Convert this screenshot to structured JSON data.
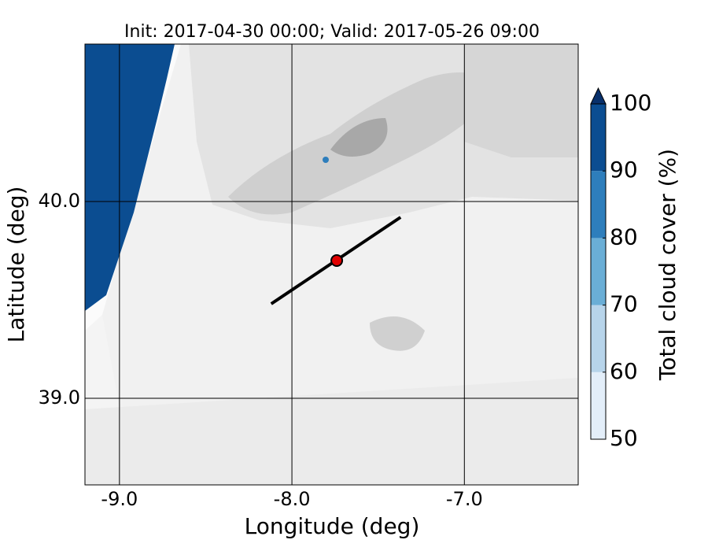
{
  "chart_data": {
    "type": "map",
    "title": "Init: 2017-04-30 00:00; Valid: 2017-05-26 09:00",
    "x_label": "Longitude (deg)",
    "y_label": "Latitude (deg)",
    "xlim": [
      -9.2,
      -6.34
    ],
    "ylim": [
      38.56,
      40.8
    ],
    "xticks": [
      {
        "value": -9,
        "label": "-9.0"
      },
      {
        "value": -8,
        "label": "-8.0"
      },
      {
        "value": -7,
        "label": "-7.0"
      }
    ],
    "yticks": [
      {
        "value": 39,
        "label": "39.0"
      },
      {
        "value": 40,
        "label": "40.0"
      }
    ],
    "grid": true,
    "section_line": {
      "lon": [
        -8.12,
        -7.37
      ],
      "lat": [
        39.48,
        39.92
      ],
      "color": "#000000"
    },
    "point": {
      "lon": -7.74,
      "lat": 39.7,
      "color": "#e00000"
    },
    "colorbar": {
      "label": "Total cloud cover (%)",
      "clim": [
        50,
        100
      ],
      "ticks": [
        50,
        60,
        70,
        80,
        90,
        100
      ],
      "colors": [
        "#e3eef9",
        "#b7d4ea",
        "#6aaed6",
        "#2e7ebc",
        "#0b4d91"
      ],
      "extend_color": "#08306b"
    }
  }
}
